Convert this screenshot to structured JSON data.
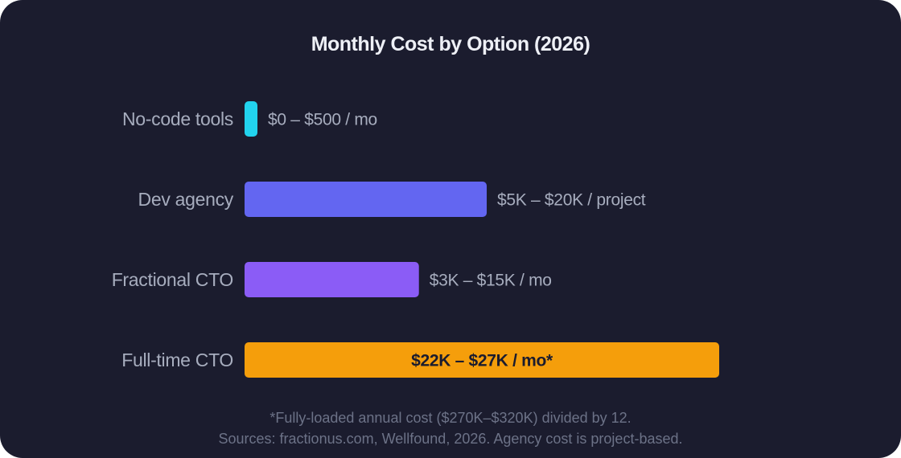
{
  "colors": {
    "background": "#1b1c2e",
    "title": "#eef0f6",
    "label": "#a7adbe",
    "footnote": "#6c7287",
    "inside_label": "#1b1c2e"
  },
  "chart_data": {
    "type": "bar",
    "orientation": "horizontal",
    "title": "Monthly Cost by Option (2026)",
    "xlabel": "",
    "ylabel": "",
    "grid": false,
    "legend": "none",
    "xlim": [
      0,
      24500
    ],
    "categories": [
      "No-code tools",
      "Dev agency",
      "Fractional CTO",
      "Full-time CTO"
    ],
    "values": [
      250,
      12500,
      9000,
      24500
    ],
    "range_low": [
      0,
      5000,
      3000,
      22000
    ],
    "range_high": [
      500,
      20000,
      15000,
      27000
    ],
    "value_labels": [
      "$0 – $500 / mo",
      "$5K – $20K / project",
      "$3K – $15K / mo",
      "$22K – $27K / mo*"
    ],
    "label_inside": [
      false,
      false,
      false,
      true
    ],
    "bar_colors": [
      "#22d3ee",
      "#6366f1",
      "#8b5cf6",
      "#f59e0b"
    ]
  },
  "footnotes": [
    "*Fully-loaded annual cost ($270K–$320K) divided by 12.",
    "Sources: fractionus.com, Wellfound, 2026. Agency cost is project-based."
  ]
}
